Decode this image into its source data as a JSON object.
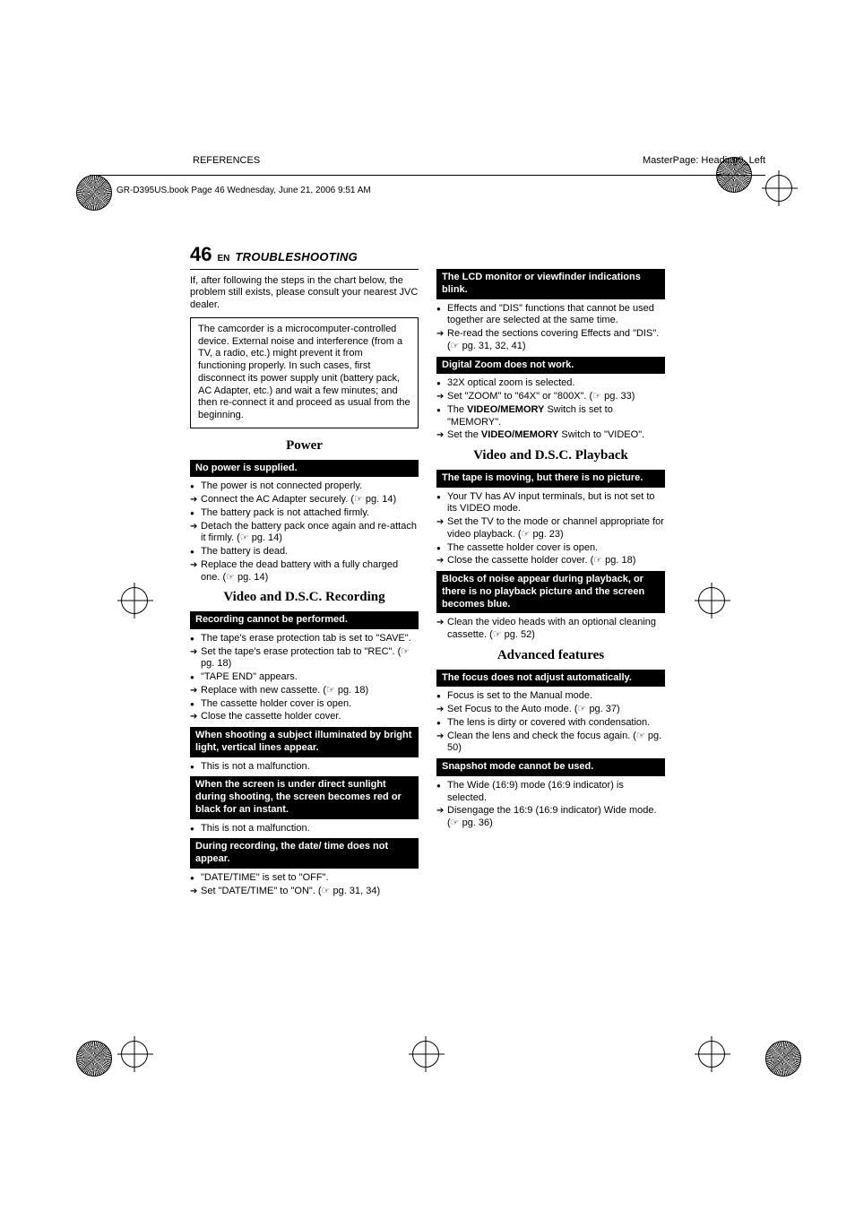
{
  "header": {
    "left": "REFERENCES",
    "right": "MasterPage: Heading0_Left",
    "bookline": "GR-D395US.book  Page 46  Wednesday, June 21, 2006  9:51 AM"
  },
  "title": {
    "pagenum": "46",
    "en": "EN",
    "section": "TROUBLESHOOTING"
  },
  "left": {
    "intro": "If, after following the steps in the chart below, the problem still exists, please consult your nearest JVC dealer.",
    "boxed": "The camcorder is a microcomputer-controlled device. External noise and interference (from a TV, a radio, etc.) might prevent it from functioning properly. In such cases, first disconnect its power supply unit (battery pack, AC Adapter, etc.) and wait a few minutes; and then re-connect it and proceed as usual from the beginning.",
    "h_power": "Power",
    "bb_nopower": "No power is supplied.",
    "nopower": [
      {
        "t": "bullet",
        "text": "The power is not connected properly."
      },
      {
        "t": "arrow",
        "text": "Connect the AC Adapter securely. (☞ pg. 14)"
      },
      {
        "t": "bullet",
        "text": "The battery pack is not attached firmly."
      },
      {
        "t": "arrow",
        "text": "Detach the battery pack once again and re-attach it firmly. (☞ pg. 14)"
      },
      {
        "t": "bullet",
        "text": "The battery is dead."
      },
      {
        "t": "arrow",
        "text": "Replace the dead battery with a fully charged one. (☞ pg. 14)"
      }
    ],
    "h_vdsc_rec": "Video and D.S.C. Recording",
    "bb_rec": "Recording cannot be performed.",
    "rec": [
      {
        "t": "bullet",
        "text": "The tape's erase protection tab is set to \"SAVE\"."
      },
      {
        "t": "arrow",
        "text": "Set the tape's erase protection tab to \"REC\". (☞ pg. 18)"
      },
      {
        "t": "bullet",
        "text": "\"TAPE END\" appears."
      },
      {
        "t": "arrow",
        "text": "Replace with new cassette. (☞ pg. 18)"
      },
      {
        "t": "bullet",
        "text": "The cassette holder cover is open."
      },
      {
        "t": "arrow",
        "text": "Close the cassette holder cover."
      }
    ],
    "bb_bright": "When shooting a subject illuminated by bright light, vertical lines appear.",
    "bright": [
      {
        "t": "bullet",
        "text": "This is not a malfunction."
      }
    ],
    "bb_sun": "When the screen is under direct sunlight during shooting, the screen becomes red or black for an instant.",
    "sun": [
      {
        "t": "bullet",
        "text": "This is not a malfunction."
      }
    ],
    "bb_date": "During recording, the date/ time does not appear.",
    "date": [
      {
        "t": "bullet",
        "text": "\"DATE/TIME\" is set to \"OFF\"."
      },
      {
        "t": "arrow",
        "text": "Set \"DATE/TIME\" to \"ON\". (☞ pg. 31, 34)"
      }
    ]
  },
  "right": {
    "bb_lcd": "The LCD monitor or viewfinder indications blink.",
    "lcd": [
      {
        "t": "bullet",
        "text": "Effects and \"DIS\" functions that cannot be used together are selected at the same time."
      },
      {
        "t": "arrow",
        "text": "Re-read the sections covering Effects and \"DIS\". (☞ pg. 31, 32, 41)"
      }
    ],
    "bb_zoom": "Digital Zoom does not work.",
    "zoom": [
      {
        "t": "bullet",
        "text": "32X optical zoom is selected."
      },
      {
        "t": "arrow",
        "text": "Set \"ZOOM\" to \"64X\" or \"800X\". (☞ pg. 33)"
      },
      {
        "t": "bullet",
        "html": "The <b>VIDEO/MEMORY</b> Switch is set to \"MEMORY\"."
      },
      {
        "t": "arrow",
        "html": "Set the <b>VIDEO/MEMORY</b> Switch to \"VIDEO\"."
      }
    ],
    "h_vdsc_pb": "Video and D.S.C. Playback",
    "bb_tape": "The tape is moving, but there is no picture.",
    "tape": [
      {
        "t": "bullet",
        "text": "Your TV has AV input terminals, but is not set to its VIDEO mode."
      },
      {
        "t": "arrow",
        "text": "Set the TV to the mode or channel appropriate for video playback. (☞ pg. 23)"
      },
      {
        "t": "bullet",
        "text": "The cassette holder cover is open."
      },
      {
        "t": "arrow",
        "text": "Close the cassette holder cover. (☞ pg. 18)"
      }
    ],
    "bb_noise": "Blocks of noise appear during playback, or there is no playback picture and the screen becomes blue.",
    "noise": [
      {
        "t": "arrow",
        "text": "Clean the video heads with an optional cleaning cassette. (☞ pg. 52)"
      }
    ],
    "h_adv": "Advanced features",
    "bb_focus": "The focus does not adjust automatically.",
    "focus": [
      {
        "t": "bullet",
        "text": "Focus is set to the Manual mode."
      },
      {
        "t": "arrow",
        "text": "Set Focus to the Auto mode. (☞ pg. 37)"
      },
      {
        "t": "bullet",
        "text": "The lens is dirty or covered with condensation."
      },
      {
        "t": "arrow",
        "text": "Clean the lens and check the focus again. (☞ pg. 50)"
      }
    ],
    "bb_snap": "Snapshot mode cannot be used.",
    "snap": [
      {
        "t": "bullet",
        "text": "The Wide (16:9) mode (16:9 indicator) is selected."
      },
      {
        "t": "arrow",
        "text": "Disengage the 16:9 (16:9 indicator) Wide mode. (☞ pg. 36)"
      }
    ]
  }
}
